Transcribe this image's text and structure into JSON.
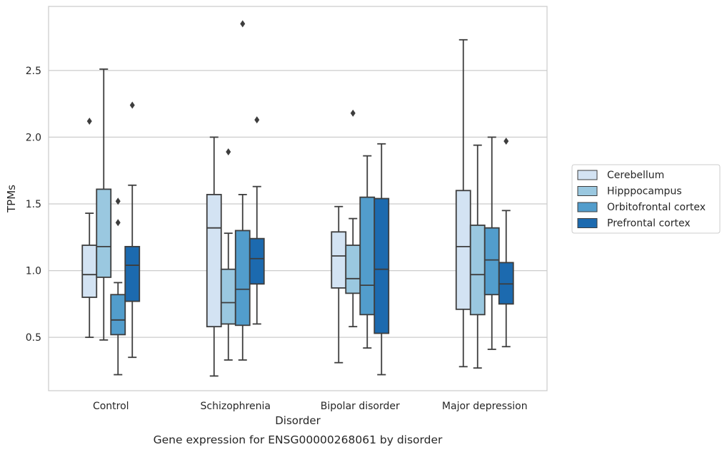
{
  "chart_data": {
    "type": "box",
    "caption": "Gene expression for ENSG00000268061 by disorder",
    "xlabel": "Disorder",
    "ylabel": "TPMs",
    "ylim": [
      0.1,
      2.98
    ],
    "yticks": [
      0.5,
      1.0,
      1.5,
      2.0,
      2.5
    ],
    "ytick_labels": [
      "0.5",
      "1.0",
      "1.5",
      "2.0",
      "2.5"
    ],
    "grid": "horizontal",
    "legend_position": "right",
    "categories": [
      "Control",
      "Schizophrenia",
      "Bipolar disorder",
      "Major depression"
    ],
    "series": [
      {
        "name": "Cerebellum",
        "color": "#d3e3f3",
        "boxes": [
          {
            "whislo": 0.5,
            "q1": 0.8,
            "med": 0.97,
            "q3": 1.19,
            "whishi": 1.43,
            "fliers": [
              2.12
            ]
          },
          {
            "whislo": 0.21,
            "q1": 0.58,
            "med": 1.32,
            "q3": 1.57,
            "whishi": 2.0,
            "fliers": []
          },
          {
            "whislo": 0.31,
            "q1": 0.87,
            "med": 1.11,
            "q3": 1.29,
            "whishi": 1.48,
            "fliers": []
          },
          {
            "whislo": 0.28,
            "q1": 0.71,
            "med": 1.18,
            "q3": 1.6,
            "whishi": 2.73,
            "fliers": []
          }
        ]
      },
      {
        "name": "Hipppocampus",
        "color": "#9ac8e0",
        "boxes": [
          {
            "whislo": 0.48,
            "q1": 0.95,
            "med": 1.18,
            "q3": 1.61,
            "whishi": 2.51,
            "fliers": []
          },
          {
            "whislo": 0.33,
            "q1": 0.6,
            "med": 0.76,
            "q3": 1.01,
            "whishi": 1.28,
            "fliers": [
              1.89
            ]
          },
          {
            "whislo": 0.58,
            "q1": 0.83,
            "med": 0.94,
            "q3": 1.19,
            "whishi": 1.39,
            "fliers": [
              2.18
            ]
          },
          {
            "whislo": 0.27,
            "q1": 0.67,
            "med": 0.97,
            "q3": 1.34,
            "whishi": 1.94,
            "fliers": []
          }
        ]
      },
      {
        "name": "Orbitofrontal cortex",
        "color": "#529dcc",
        "boxes": [
          {
            "whislo": 0.22,
            "q1": 0.52,
            "med": 0.63,
            "q3": 0.82,
            "whishi": 0.91,
            "fliers": [
              1.36,
              1.52
            ]
          },
          {
            "whislo": 0.33,
            "q1": 0.59,
            "med": 0.86,
            "q3": 1.3,
            "whishi": 1.57,
            "fliers": [
              2.85
            ]
          },
          {
            "whislo": 0.42,
            "q1": 0.67,
            "med": 0.89,
            "q3": 1.55,
            "whishi": 1.86,
            "fliers": []
          },
          {
            "whislo": 0.41,
            "q1": 0.82,
            "med": 1.08,
            "q3": 1.32,
            "whishi": 2.0,
            "fliers": []
          }
        ]
      },
      {
        "name": "Prefrontal cortex",
        "color": "#1c6aaf",
        "boxes": [
          {
            "whislo": 0.35,
            "q1": 0.77,
            "med": 1.04,
            "q3": 1.18,
            "whishi": 1.64,
            "fliers": [
              2.24
            ]
          },
          {
            "whislo": 0.6,
            "q1": 0.9,
            "med": 1.09,
            "q3": 1.24,
            "whishi": 1.63,
            "fliers": [
              2.13
            ]
          },
          {
            "whislo": 0.22,
            "q1": 0.53,
            "med": 1.01,
            "q3": 1.54,
            "whishi": 1.95,
            "fliers": []
          },
          {
            "whislo": 0.43,
            "q1": 0.75,
            "med": 0.9,
            "q3": 1.06,
            "whishi": 1.45,
            "fliers": [
              1.97
            ]
          }
        ]
      }
    ]
  },
  "style": {
    "edge_color": "#3d3d3d",
    "grid_color": "#cccccc",
    "frame_color": "#cccccc",
    "text_color": "#262626"
  }
}
